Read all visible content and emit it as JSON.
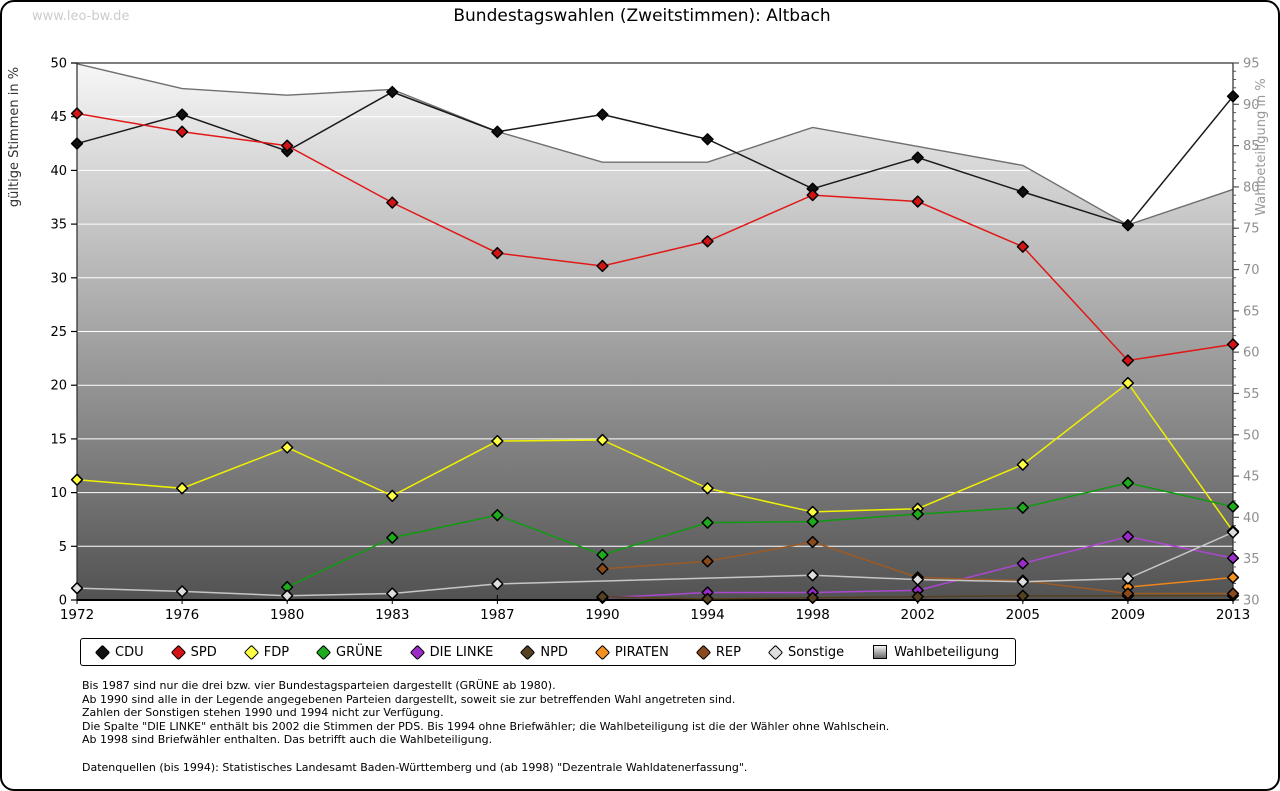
{
  "watermark": "www.leo-bw.de",
  "title": "Bundestagswahlen (Zweitstimmen): Altbach",
  "chart_data": {
    "type": "line",
    "title": "Bundestagswahlen (Zweitstimmen): Altbach",
    "x_categories": [
      "1972",
      "1976",
      "1980",
      "1983",
      "1987",
      "1990",
      "1994",
      "1998",
      "2002",
      "2005",
      "2009",
      "2013"
    ],
    "left_axis": {
      "label": "gültige Stimmen in %",
      "min": 0,
      "max": 50,
      "tick_step": 5,
      "ticks": [
        0,
        5,
        10,
        15,
        20,
        25,
        30,
        35,
        40,
        45,
        50
      ]
    },
    "right_axis": {
      "label": "Wahlbeteiligung in %",
      "min": 30,
      "max": 95,
      "tick_step": 5,
      "minor_step": 1,
      "ticks": [
        30,
        35,
        40,
        45,
        50,
        55,
        60,
        65,
        70,
        75,
        80,
        85,
        90,
        95
      ]
    },
    "grid": "white horizontal lines at every 5 units, legend below chart",
    "turnout_series": {
      "name": "Wahlbeteiligung",
      "axis": "right",
      "style": "area",
      "stroke": "#707070",
      "fill_top": "#f7f7f7",
      "fill_bottom": "#525252",
      "values": [
        94.9,
        91.9,
        91.1,
        91.8,
        86.7,
        83.0,
        83.0,
        87.2,
        84.9,
        82.6,
        75.4,
        79.7
      ]
    },
    "series": [
      {
        "name": "CDU",
        "line": "#1a1a1a",
        "marker": "#111111",
        "values": [
          42.5,
          45.2,
          41.8,
          47.3,
          43.6,
          45.2,
          42.9,
          38.3,
          41.2,
          38.0,
          34.9,
          46.9
        ]
      },
      {
        "name": "SPD",
        "line": "#e01818",
        "marker": "#d21414",
        "values": [
          45.3,
          43.6,
          42.3,
          37.0,
          32.3,
          31.1,
          33.4,
          37.7,
          37.1,
          32.9,
          22.3,
          23.8
        ]
      },
      {
        "name": "FDP",
        "line": "#f0f000",
        "marker": "#ffff42",
        "values": [
          11.2,
          10.4,
          14.2,
          9.7,
          14.8,
          14.9,
          10.4,
          8.2,
          8.5,
          12.6,
          20.2,
          6.4
        ]
      },
      {
        "name": "GRÜNE",
        "line": "#0f9b0f",
        "marker": "#1dac1d",
        "values": [
          null,
          null,
          1.2,
          5.8,
          7.9,
          4.2,
          7.2,
          7.3,
          8.0,
          8.6,
          10.9,
          8.7
        ]
      },
      {
        "name": "DIE LINKE",
        "line": "#ab47d1",
        "marker": "#9c2cc9",
        "values": [
          null,
          null,
          null,
          null,
          null,
          0.2,
          0.7,
          0.7,
          0.9,
          3.4,
          5.9,
          3.9
        ]
      },
      {
        "name": "NPD",
        "line": "#55401f",
        "marker": "#55401f",
        "values": [
          null,
          null,
          null,
          null,
          null,
          0.3,
          0.1,
          0.2,
          0.3,
          0.4,
          0.4,
          0.4
        ]
      },
      {
        "name": "PIRATEN",
        "line": "#ef8418",
        "marker": "#f59120",
        "values": [
          null,
          null,
          null,
          null,
          null,
          null,
          null,
          null,
          null,
          null,
          1.2,
          2.1
        ]
      },
      {
        "name": "REP",
        "line": "#9c5a24",
        "marker": "#8a4a1c",
        "values": [
          null,
          null,
          null,
          null,
          null,
          2.9,
          3.6,
          5.4,
          2.1,
          1.8,
          0.6,
          0.6
        ]
      },
      {
        "name": "Sonstige",
        "line": "#c6c6c6",
        "marker": "#dedede",
        "values": [
          1.1,
          0.8,
          0.4,
          0.6,
          1.5,
          null,
          null,
          2.3,
          1.9,
          1.7,
          2.0,
          6.3
        ]
      }
    ]
  },
  "legend": {
    "items": [
      {
        "label": "CDU",
        "shape": "diamond",
        "color": "#111111"
      },
      {
        "label": "SPD",
        "shape": "diamond",
        "color": "#d21414"
      },
      {
        "label": "FDP",
        "shape": "diamond",
        "color": "#ffff42"
      },
      {
        "label": "GRÜNE",
        "shape": "diamond",
        "color": "#1dac1d"
      },
      {
        "label": "DIE LINKE",
        "shape": "diamond",
        "color": "#9c2cc9"
      },
      {
        "label": "NPD",
        "shape": "diamond",
        "color": "#55401f"
      },
      {
        "label": "PIRATEN",
        "shape": "diamond",
        "color": "#f59120"
      },
      {
        "label": "REP",
        "shape": "diamond",
        "color": "#8a4a1c"
      },
      {
        "label": "Sonstige",
        "shape": "diamond",
        "color": "#dedede"
      },
      {
        "label": "Wahlbeteiligung",
        "shape": "square",
        "color": "gradient"
      }
    ]
  },
  "footnotes": [
    "Bis 1987 sind nur die drei bzw. vier Bundestagsparteien dargestellt (GRÜNE ab 1980).",
    "Ab 1990 sind alle in der Legende angegebenen Parteien dargestellt, soweit sie zur betreffenden Wahl angetreten sind.",
    "Zahlen der Sonstigen stehen 1990 und 1994 nicht zur Verfügung.",
    "Die Spalte \"DIE LINKE\" enthält bis 2002 die Stimmen der PDS. Bis 1994 ohne Briefwähler; die Wahlbeteiligung ist die der Wähler ohne Wahlschein.",
    "Ab 1998 sind Briefwähler enthalten. Das betrifft auch die Wahlbeteiligung."
  ],
  "source": "Datenquellen (bis 1994): Statistisches Landesamt Baden-Württemberg und (ab 1998) \"Dezentrale Wahldatenerfassung\"."
}
